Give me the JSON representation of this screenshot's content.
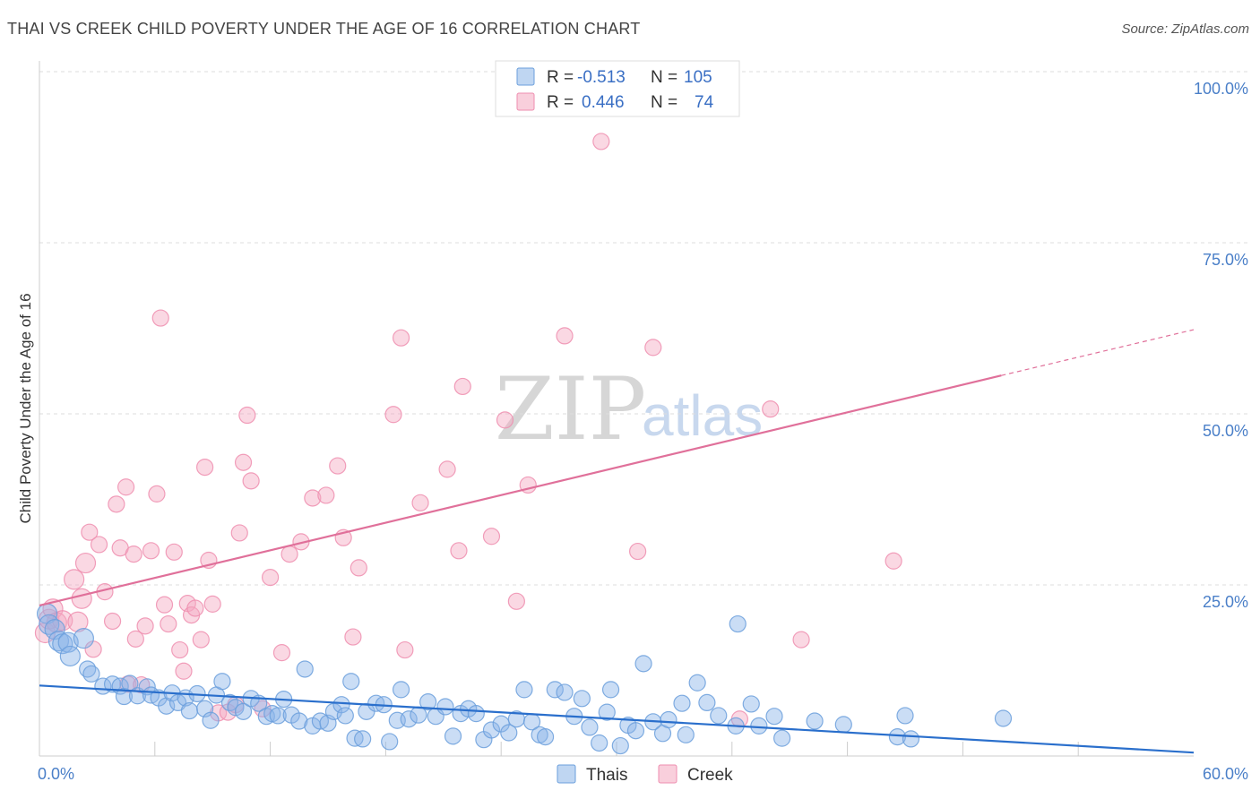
{
  "title": "THAI VS CREEK CHILD POVERTY UNDER THE AGE OF 16 CORRELATION CHART",
  "source": "Source: ZipAtlas.com",
  "colors": {
    "thai": "#8ab4e8",
    "thai_stroke": "#6b9fdc",
    "thai_line": "#2a6fcc",
    "creek": "#f4a8c0",
    "creek_stroke": "#ee8eaf",
    "creek_line": "#e0709a",
    "grid": "#dddddd",
    "tick_label": "#4a7fc8"
  },
  "legend": {
    "rows": [
      {
        "r_label": "R =",
        "r_value": "-0.513",
        "n_label": "N =",
        "n_value": "105"
      },
      {
        "r_label": "R =",
        "r_value": "0.446",
        "n_label": "N =",
        "n_value": "74"
      }
    ]
  },
  "bottom_legend": {
    "thai": "Thais",
    "creek": "Creek"
  },
  "watermark": {
    "zip": "ZIP",
    "atlas": "atlas"
  },
  "chart_data": {
    "type": "scatter",
    "title": "THAI VS CREEK CHILD POVERTY UNDER THE AGE OF 16 CORRELATION CHART",
    "xlabel": "",
    "ylabel": "Child Poverty Under the Age of 16",
    "xlim": [
      0,
      60
    ],
    "ylim": [
      0,
      100
    ],
    "x_ticks": [
      "0.0%",
      "60.0%"
    ],
    "y_ticks": [
      {
        "value": 25,
        "label": "25.0%"
      },
      {
        "value": 50,
        "label": "50.0%"
      },
      {
        "value": 75,
        "label": "75.0%"
      },
      {
        "value": 100,
        "label": "100.0%"
      }
    ],
    "series": [
      {
        "name": "Thais",
        "r": -0.513,
        "n": 105,
        "trend": {
          "x0": 0,
          "y0": 10.3,
          "x1": 60,
          "y1": 0.5
        },
        "points": [
          [
            0.4,
            20.8
          ],
          [
            0.5,
            19.2
          ],
          [
            0.8,
            18.5
          ],
          [
            1.0,
            16.8
          ],
          [
            1.2,
            16.4
          ],
          [
            1.5,
            16.6
          ],
          [
            1.6,
            14.6
          ],
          [
            2.3,
            17.2
          ],
          [
            2.5,
            12.7
          ],
          [
            2.7,
            12.0
          ],
          [
            3.3,
            10.2
          ],
          [
            3.8,
            10.5
          ],
          [
            4.2,
            10.2
          ],
          [
            4.4,
            8.7
          ],
          [
            4.7,
            10.6
          ],
          [
            5.1,
            8.8
          ],
          [
            5.6,
            10.1
          ],
          [
            5.8,
            8.9
          ],
          [
            6.2,
            8.5
          ],
          [
            6.6,
            7.3
          ],
          [
            6.9,
            9.2
          ],
          [
            7.2,
            7.8
          ],
          [
            7.6,
            8.5
          ],
          [
            7.8,
            6.6
          ],
          [
            8.2,
            9.1
          ],
          [
            8.6,
            6.9
          ],
          [
            8.9,
            5.2
          ],
          [
            9.2,
            8.9
          ],
          [
            9.5,
            10.9
          ],
          [
            9.9,
            7.8
          ],
          [
            10.2,
            7.1
          ],
          [
            10.6,
            6.5
          ],
          [
            11.0,
            8.4
          ],
          [
            11.4,
            7.7
          ],
          [
            11.8,
            5.8
          ],
          [
            12.1,
            6.2
          ],
          [
            12.4,
            5.9
          ],
          [
            12.7,
            8.3
          ],
          [
            13.1,
            6.0
          ],
          [
            13.5,
            5.1
          ],
          [
            13.8,
            12.7
          ],
          [
            14.2,
            4.4
          ],
          [
            14.6,
            5.1
          ],
          [
            15.0,
            4.8
          ],
          [
            15.3,
            6.5
          ],
          [
            15.7,
            7.5
          ],
          [
            15.9,
            5.9
          ],
          [
            16.2,
            10.9
          ],
          [
            16.4,
            2.6
          ],
          [
            16.8,
            2.5
          ],
          [
            17.0,
            6.5
          ],
          [
            17.5,
            7.7
          ],
          [
            17.9,
            7.5
          ],
          [
            18.2,
            2.1
          ],
          [
            18.6,
            5.2
          ],
          [
            18.8,
            9.7
          ],
          [
            19.2,
            5.4
          ],
          [
            19.7,
            6.0
          ],
          [
            20.2,
            7.9
          ],
          [
            20.6,
            5.8
          ],
          [
            21.1,
            7.2
          ],
          [
            21.5,
            2.9
          ],
          [
            21.9,
            6.2
          ],
          [
            22.3,
            6.9
          ],
          [
            22.7,
            6.2
          ],
          [
            23.1,
            2.4
          ],
          [
            23.5,
            3.8
          ],
          [
            24.0,
            4.7
          ],
          [
            24.4,
            3.4
          ],
          [
            24.8,
            5.4
          ],
          [
            25.2,
            9.7
          ],
          [
            25.6,
            5.0
          ],
          [
            26.0,
            3.1
          ],
          [
            26.3,
            2.8
          ],
          [
            26.8,
            9.7
          ],
          [
            27.3,
            9.3
          ],
          [
            27.8,
            5.8
          ],
          [
            28.2,
            8.4
          ],
          [
            28.6,
            4.2
          ],
          [
            29.1,
            1.9
          ],
          [
            29.5,
            6.4
          ],
          [
            29.7,
            9.7
          ],
          [
            30.2,
            1.5
          ],
          [
            30.6,
            4.5
          ],
          [
            31.0,
            3.7
          ],
          [
            31.4,
            13.5
          ],
          [
            31.9,
            5.0
          ],
          [
            32.4,
            3.3
          ],
          [
            32.7,
            5.3
          ],
          [
            33.4,
            7.7
          ],
          [
            33.6,
            3.1
          ],
          [
            34.2,
            10.7
          ],
          [
            34.7,
            7.8
          ],
          [
            35.3,
            5.9
          ],
          [
            36.2,
            4.4
          ],
          [
            37.0,
            7.6
          ],
          [
            37.4,
            4.4
          ],
          [
            38.2,
            5.8
          ],
          [
            38.6,
            2.6
          ],
          [
            40.3,
            5.1
          ],
          [
            41.8,
            4.6
          ],
          [
            44.6,
            2.8
          ],
          [
            45.0,
            5.9
          ],
          [
            45.3,
            2.5
          ],
          [
            50.1,
            5.5
          ],
          [
            36.3,
            19.3
          ]
        ]
      },
      {
        "name": "Creek",
        "r": 0.446,
        "n": 74,
        "trend": {
          "x0": 0,
          "y0": 22.0,
          "x1": 50,
          "y1": 55.6
        },
        "trend_dashed": {
          "x0": 50,
          "y0": 55.6,
          "x1": 60,
          "y1": 62.3
        },
        "points": [
          [
            0.3,
            18.0
          ],
          [
            0.5,
            20.0
          ],
          [
            0.7,
            21.5
          ],
          [
            0.9,
            19.5
          ],
          [
            1.2,
            19.8
          ],
          [
            1.8,
            25.8
          ],
          [
            2.0,
            19.6
          ],
          [
            2.2,
            23.0
          ],
          [
            2.4,
            28.2
          ],
          [
            2.6,
            32.7
          ],
          [
            2.8,
            15.6
          ],
          [
            3.1,
            30.9
          ],
          [
            3.4,
            24.0
          ],
          [
            3.8,
            19.7
          ],
          [
            4.0,
            36.8
          ],
          [
            4.2,
            30.4
          ],
          [
            4.5,
            39.3
          ],
          [
            4.6,
            10.5
          ],
          [
            4.9,
            29.5
          ],
          [
            5.0,
            17.1
          ],
          [
            5.3,
            10.4
          ],
          [
            5.5,
            19.0
          ],
          [
            5.8,
            30.0
          ],
          [
            6.1,
            38.3
          ],
          [
            6.3,
            64.0
          ],
          [
            6.5,
            22.1
          ],
          [
            6.7,
            19.3
          ],
          [
            7.0,
            29.8
          ],
          [
            7.3,
            15.5
          ],
          [
            7.5,
            12.4
          ],
          [
            7.7,
            22.3
          ],
          [
            7.9,
            20.6
          ],
          [
            8.1,
            21.6
          ],
          [
            8.4,
            17.0
          ],
          [
            8.6,
            42.2
          ],
          [
            8.8,
            28.6
          ],
          [
            9.0,
            22.2
          ],
          [
            9.3,
            6.3
          ],
          [
            9.8,
            6.4
          ],
          [
            10.2,
            7.5
          ],
          [
            10.4,
            32.6
          ],
          [
            10.6,
            42.9
          ],
          [
            10.8,
            49.8
          ],
          [
            11.0,
            40.2
          ],
          [
            11.6,
            6.9
          ],
          [
            12.0,
            26.1
          ],
          [
            12.6,
            15.1
          ],
          [
            13.0,
            29.5
          ],
          [
            13.6,
            31.3
          ],
          [
            14.2,
            37.7
          ],
          [
            14.9,
            38.1
          ],
          [
            15.5,
            42.4
          ],
          [
            15.8,
            31.9
          ],
          [
            16.3,
            17.4
          ],
          [
            16.6,
            27.5
          ],
          [
            18.4,
            49.9
          ],
          [
            18.8,
            61.1
          ],
          [
            19.0,
            15.5
          ],
          [
            19.8,
            37.0
          ],
          [
            21.2,
            41.9
          ],
          [
            21.8,
            30.0
          ],
          [
            22.0,
            54.0
          ],
          [
            23.5,
            32.1
          ],
          [
            24.2,
            49.1
          ],
          [
            24.8,
            22.6
          ],
          [
            25.4,
            39.6
          ],
          [
            27.3,
            61.4
          ],
          [
            29.2,
            89.8
          ],
          [
            31.1,
            29.9
          ],
          [
            31.9,
            59.7
          ],
          [
            36.4,
            5.4
          ],
          [
            38.0,
            50.7
          ],
          [
            39.6,
            17.0
          ],
          [
            44.4,
            28.5
          ]
        ]
      }
    ]
  }
}
